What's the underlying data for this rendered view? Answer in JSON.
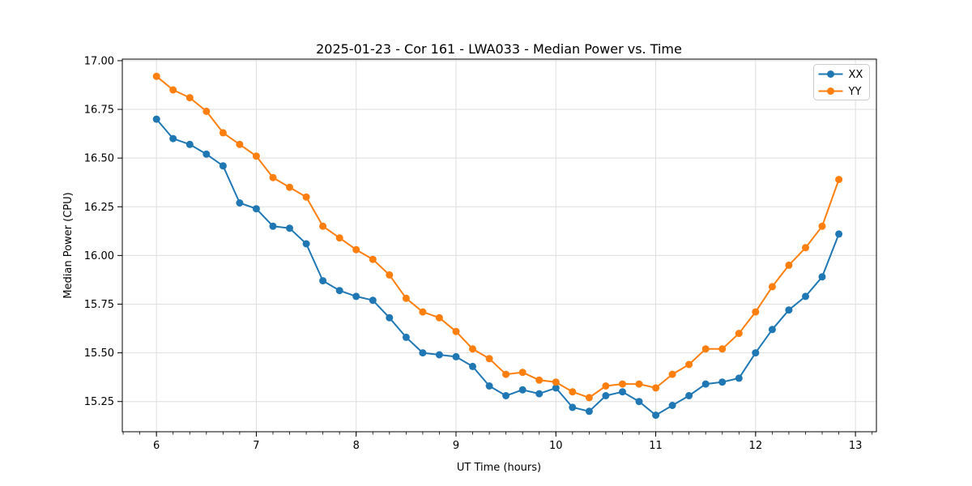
{
  "window": {
    "background": "#ffffff"
  },
  "chart_data": {
    "type": "line",
    "title": "2025-01-23 - Cor 161 - LWA033 - Median Power vs. Time",
    "xlabel": "UT Time (hours)",
    "ylabel": "Median Power (CPU)",
    "xlim": [
      5.658,
      13.21
    ],
    "ylim": [
      15.095,
      17.008
    ],
    "xticks": [
      6,
      7,
      8,
      9,
      10,
      11,
      12,
      13
    ],
    "xtick_labels": [
      "6",
      "7",
      "8",
      "9",
      "10",
      "11",
      "12",
      "13"
    ],
    "yticks": [
      15.25,
      15.5,
      15.75,
      16.0,
      16.25,
      16.5,
      16.75,
      17.0
    ],
    "ytick_labels": [
      "15.25",
      "15.50",
      "15.75",
      "16.00",
      "16.25",
      "16.50",
      "16.75",
      "17.00"
    ],
    "x_minor_step": 0.1666667,
    "grid": true,
    "grid_color": "#dedede",
    "legend_position": "top-right",
    "x": [
      6.0,
      6.1667,
      6.3333,
      6.5,
      6.6667,
      6.8333,
      7.0,
      7.1667,
      7.3333,
      7.5,
      7.6667,
      7.8333,
      8.0,
      8.1667,
      8.3333,
      8.5,
      8.6667,
      8.8333,
      9.0,
      9.1667,
      9.3333,
      9.5,
      9.6667,
      9.8333,
      10.0,
      10.1667,
      10.3333,
      10.5,
      10.6667,
      10.8333,
      11.0,
      11.1667,
      11.3333,
      11.5,
      11.6667,
      11.8333,
      12.0,
      12.1667,
      12.3333,
      12.5,
      12.6667,
      12.8333
    ],
    "series": [
      {
        "name": "XX",
        "color": "#1f77b4",
        "values": [
          16.7,
          16.6,
          16.57,
          16.52,
          16.46,
          16.27,
          16.24,
          16.15,
          16.14,
          16.06,
          15.87,
          15.82,
          15.79,
          15.77,
          15.68,
          15.58,
          15.5,
          15.49,
          15.48,
          15.43,
          15.33,
          15.28,
          15.31,
          15.29,
          15.32,
          15.22,
          15.2,
          15.28,
          15.3,
          15.25,
          15.18,
          15.23,
          15.28,
          15.34,
          15.35,
          15.37,
          15.5,
          15.62,
          15.72,
          15.79,
          15.89,
          16.11
        ]
      },
      {
        "name": "YY",
        "color": "#ff7f0e",
        "values": [
          16.92,
          16.85,
          16.81,
          16.74,
          16.63,
          16.57,
          16.51,
          16.4,
          16.35,
          16.3,
          16.15,
          16.09,
          16.03,
          15.98,
          15.9,
          15.78,
          15.71,
          15.68,
          15.61,
          15.52,
          15.47,
          15.39,
          15.4,
          15.36,
          15.35,
          15.3,
          15.27,
          15.33,
          15.34,
          15.34,
          15.32,
          15.39,
          15.44,
          15.52,
          15.52,
          15.6,
          15.71,
          15.84,
          15.95,
          16.04,
          16.15,
          16.39
        ]
      }
    ]
  }
}
